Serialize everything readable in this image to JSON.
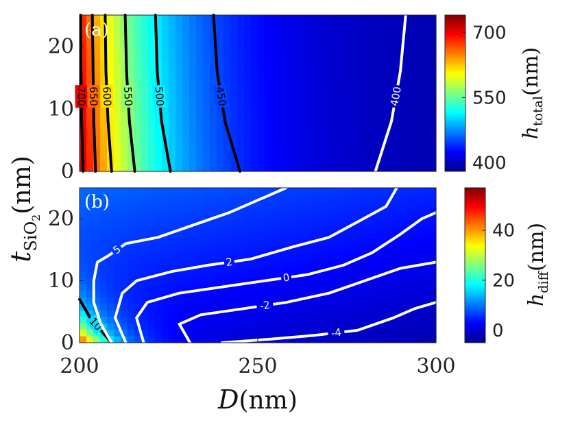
{
  "chart_data": [
    {
      "panel": "(a)",
      "type": "heatmap",
      "x_range": [
        200,
        300
      ],
      "y_range": [
        0,
        25
      ],
      "x_ticks": [
        "200",
        "250",
        "300"
      ],
      "y_ticks": [
        "0",
        "10",
        "20"
      ],
      "colorbar": {
        "range": [
          380,
          740
        ],
        "ticks": [
          "400",
          "550",
          "700"
        ],
        "label": "h",
        "label_sub": "total",
        "label_unit": "(nm)"
      },
      "contours": [
        {
          "level": "700",
          "color": "black",
          "points": [
            [
              201.0,
              0
            ],
            [
              200.6,
              8
            ],
            [
              200.4,
              16
            ],
            [
              200.3,
              25
            ]
          ]
        },
        {
          "level": "650",
          "color": "black",
          "points": [
            [
              204.5,
              0
            ],
            [
              204.0,
              8
            ],
            [
              203.8,
              16
            ],
            [
              203.6,
              25
            ]
          ]
        },
        {
          "level": "600",
          "color": "black",
          "points": [
            [
              209.0,
              0
            ],
            [
              208.0,
              8
            ],
            [
              207.4,
              16
            ],
            [
              207.2,
              25
            ]
          ]
        },
        {
          "level": "550",
          "color": "black",
          "points": [
            [
              215.5,
              0
            ],
            [
              214.0,
              8
            ],
            [
              213.2,
              16
            ],
            [
              212.8,
              25
            ]
          ]
        },
        {
          "level": "500",
          "color": "black",
          "points": [
            [
              225.5,
              0
            ],
            [
              223.0,
              8
            ],
            [
              221.8,
              16
            ],
            [
              221.3,
              25
            ]
          ]
        },
        {
          "level": "450",
          "color": "black",
          "points": [
            [
              245.0,
              0
            ],
            [
              240.8,
              8
            ],
            [
              238.6,
              16
            ],
            [
              237.6,
              25
            ]
          ]
        },
        {
          "level": "400",
          "color": "white",
          "points": [
            [
              283.0,
              0
            ],
            [
              287.5,
              8
            ],
            [
              290.0,
              16
            ],
            [
              291.5,
              25
            ]
          ]
        }
      ]
    },
    {
      "panel": "(b)",
      "type": "heatmap",
      "x_range": [
        200,
        300
      ],
      "y_range": [
        0,
        25
      ],
      "x_ticks": [
        "200",
        "250",
        "300"
      ],
      "y_ticks": [
        "0",
        "10",
        "20"
      ],
      "xlabel": "D",
      "xlabel_unit": "(nm)",
      "ylabel": "t",
      "ylabel_sub": "SiO",
      "ylabel_sub2": "2",
      "ylabel_unit": "(nm)",
      "colorbar": {
        "range": [
          -5,
          57
        ],
        "ticks": [
          "0",
          "20",
          "40"
        ],
        "label": "h",
        "label_sub": "diff",
        "label_unit": "(nm)"
      },
      "contours": [
        {
          "level": "10",
          "color": "black",
          "points": [
            [
              200,
              7
            ],
            [
              203,
              4
            ],
            [
              206,
              2
            ],
            [
              209,
              0
            ]
          ]
        },
        {
          "level": "5",
          "color": "white",
          "points": [
            [
              209,
              0
            ],
            [
              206,
              3
            ],
            [
              204,
              6.5
            ],
            [
              204,
              10
            ],
            [
              205,
              13
            ],
            [
              208,
              14
            ],
            [
              213,
              16
            ],
            [
              222,
              17
            ],
            [
              232,
              19
            ],
            [
              242,
              21
            ],
            [
              250,
              23
            ],
            [
              258,
              25
            ]
          ]
        },
        {
          "level": "2",
          "color": "white",
          "points": [
            [
              213,
              0
            ],
            [
              210,
              4
            ],
            [
              212,
              8
            ],
            [
              216,
              10
            ],
            [
              226,
              11.5
            ],
            [
              236,
              12.5
            ],
            [
              248,
              13.5
            ],
            [
              260,
              15.5
            ],
            [
              270,
              17
            ],
            [
              278,
              19.5
            ],
            [
              286,
              22
            ],
            [
              289,
              25
            ]
          ]
        },
        {
          "level": "0",
          "color": "white",
          "points": [
            [
              218,
              0
            ],
            [
              216,
              4
            ],
            [
              219,
              6.5
            ],
            [
              228,
              8
            ],
            [
              240,
              9
            ],
            [
              252,
              10
            ],
            [
              264,
              11
            ],
            [
              274,
              12.5
            ],
            [
              282,
              14.5
            ],
            [
              290,
              17.5
            ],
            [
              296,
              20
            ],
            [
              300,
              21
            ]
          ]
        },
        {
          "level": "-2",
          "color": "white",
          "points": [
            [
              231,
              0
            ],
            [
              228,
              3
            ],
            [
              234,
              4.5
            ],
            [
              246,
              5.5
            ],
            [
              258,
              6.5
            ],
            [
              270,
              8
            ],
            [
              280,
              10
            ],
            [
              290,
              12
            ],
            [
              300,
              13
            ]
          ]
        },
        {
          "level": "-4",
          "color": "white",
          "points": [
            [
              240,
              0
            ],
            [
              254,
              0.6
            ],
            [
              266,
              1.2
            ],
            [
              278,
              2
            ],
            [
              288,
              4
            ],
            [
              294,
              5.5
            ],
            [
              300,
              6.5
            ]
          ]
        }
      ]
    }
  ]
}
